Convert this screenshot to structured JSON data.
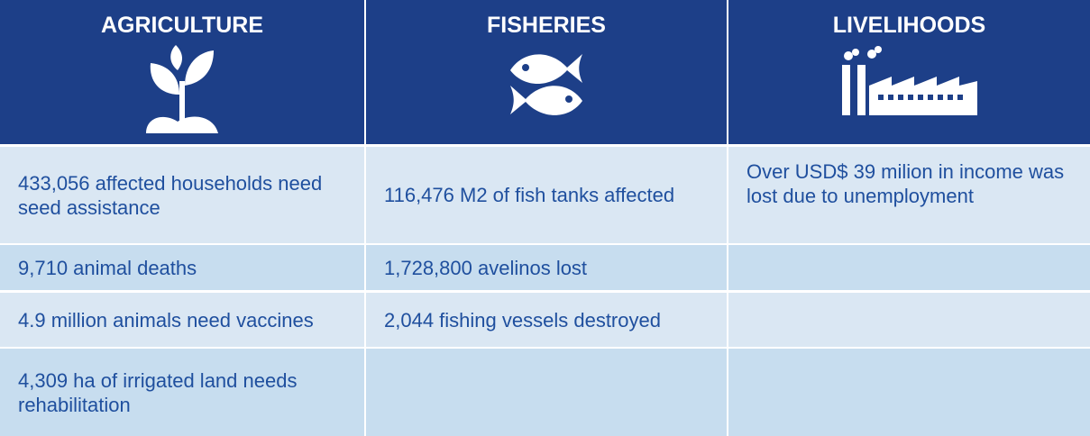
{
  "columns": [
    {
      "title": "AGRICULTURE",
      "items": [
        "433,056 affected households need seed assistance",
        "9,710 animal deaths",
        "4.9 million animals need vaccines",
        "4,309 ha of irrigated land needs rehabilitation"
      ]
    },
    {
      "title": "FISHERIES",
      "items": [
        "116,476 M2 of fish tanks affected",
        "1,728,800 avelinos lost",
        "2,044 fishing vessels destroyed"
      ]
    },
    {
      "title": "LIVELIHOODS",
      "items": [
        "Over USD$ 39 milion in income was lost due to unemployment"
      ]
    }
  ]
}
